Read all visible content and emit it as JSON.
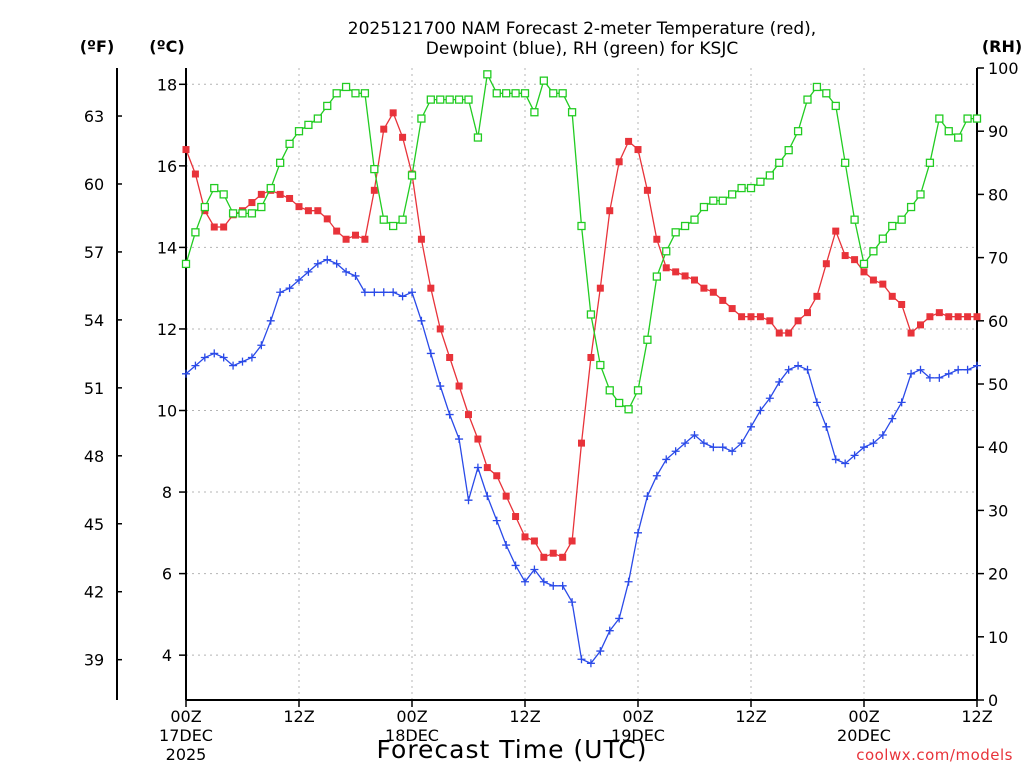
{
  "chart_data": {
    "type": "line",
    "title_line1": "2025121700 NAM Forecast 2-meter Temperature (red),",
    "title_line2": "Dewpoint (blue), RH (green) for KSJC",
    "xlabel": "Forecast Time (UTC)",
    "credit": "coolwx.com/models",
    "units": {
      "fahrenheit": "(ºF)",
      "celsius": "(ºC)",
      "rh": "(RH)"
    },
    "x_hours_range": [
      0,
      84
    ],
    "x_step_hours": 1,
    "celsius_range": [
      2.9,
      18.4
    ],
    "rh_range": [
      0,
      100
    ],
    "grid": true,
    "x_ticks": [
      {
        "hour": 0,
        "time": "00Z",
        "date": "17DEC",
        "year": "2025"
      },
      {
        "hour": 12,
        "time": "12Z",
        "date": "",
        "year": ""
      },
      {
        "hour": 24,
        "time": "00Z",
        "date": "18DEC",
        "year": ""
      },
      {
        "hour": 36,
        "time": "12Z",
        "date": "",
        "year": ""
      },
      {
        "hour": 48,
        "time": "00Z",
        "date": "19DEC",
        "year": ""
      },
      {
        "hour": 60,
        "time": "12Z",
        "date": "",
        "year": ""
      },
      {
        "hour": 72,
        "time": "00Z",
        "date": "20DEC",
        "year": ""
      },
      {
        "hour": 84,
        "time": "12Z",
        "date": "",
        "year": ""
      }
    ],
    "celsius_ticks": [
      4,
      6,
      8,
      10,
      12,
      14,
      16,
      18
    ],
    "fahrenheit_ticks": [
      39,
      42,
      45,
      48,
      51,
      54,
      57,
      60,
      63
    ],
    "rh_ticks": [
      0,
      10,
      20,
      30,
      40,
      50,
      60,
      70,
      80,
      90,
      100
    ],
    "series": [
      {
        "name": "Temperature (°C)",
        "color": "#e8333a",
        "marker": "filled-square",
        "axis": "celsius",
        "values": [
          16.4,
          15.8,
          14.9,
          14.5,
          14.5,
          14.8,
          14.9,
          15.1,
          15.3,
          15.4,
          15.3,
          15.2,
          15.0,
          14.9,
          14.9,
          14.7,
          14.4,
          14.2,
          14.3,
          14.2,
          15.4,
          16.9,
          17.3,
          16.7,
          15.8,
          14.2,
          13.0,
          12.0,
          11.3,
          10.6,
          9.9,
          9.3,
          8.6,
          8.4,
          7.9,
          7.4,
          6.9,
          6.8,
          6.4,
          6.5,
          6.4,
          6.8,
          9.2,
          11.3,
          13.0,
          14.9,
          16.1,
          16.6,
          16.4,
          15.4,
          14.2,
          13.5,
          13.4,
          13.3,
          13.2,
          13.0,
          12.9,
          12.7,
          12.5,
          12.3,
          12.3,
          12.3,
          12.2,
          11.9,
          11.9,
          12.2,
          12.4,
          12.8,
          13.6,
          14.4,
          13.8,
          13.7,
          13.4,
          13.2,
          13.1,
          12.8,
          12.6,
          11.9,
          12.1,
          12.3,
          12.4,
          12.3,
          12.3,
          12.3,
          12.3
        ]
      },
      {
        "name": "Dewpoint (°C)",
        "color": "#2a4ae8",
        "marker": "plus",
        "axis": "celsius",
        "values": [
          10.9,
          11.1,
          11.3,
          11.4,
          11.3,
          11.1,
          11.2,
          11.3,
          11.6,
          12.2,
          12.9,
          13.0,
          13.2,
          13.4,
          13.6,
          13.7,
          13.6,
          13.4,
          13.3,
          12.9,
          12.9,
          12.9,
          12.9,
          12.8,
          12.9,
          12.2,
          11.4,
          10.6,
          9.9,
          9.3,
          7.8,
          8.6,
          7.9,
          7.3,
          6.7,
          6.2,
          5.8,
          6.1,
          5.8,
          5.7,
          5.7,
          5.3,
          3.9,
          3.8,
          4.1,
          4.6,
          4.9,
          5.8,
          7.0,
          7.9,
          8.4,
          8.8,
          9.0,
          9.2,
          9.4,
          9.2,
          9.1,
          9.1,
          9.0,
          9.2,
          9.6,
          10.0,
          10.3,
          10.7,
          11.0,
          11.1,
          11.0,
          10.2,
          9.6,
          8.8,
          8.7,
          8.9,
          9.1,
          9.2,
          9.4,
          9.8,
          10.2,
          10.9,
          11.0,
          10.8,
          10.8,
          10.9,
          11.0,
          11.0,
          11.1
        ]
      },
      {
        "name": "RH (%)",
        "color": "#22cc22",
        "marker": "open-square",
        "axis": "rh",
        "values": [
          69,
          74,
          78,
          81,
          80,
          77,
          77,
          77,
          78,
          81,
          85,
          88,
          90,
          91,
          92,
          94,
          96,
          97,
          96,
          96,
          84,
          76,
          75,
          76,
          83,
          92,
          95,
          95,
          95,
          95,
          95,
          89,
          99,
          96,
          96,
          96,
          96,
          93,
          98,
          96,
          96,
          93,
          75,
          61,
          53,
          49,
          47,
          46,
          49,
          57,
          67,
          71,
          74,
          75,
          76,
          78,
          79,
          79,
          80,
          81,
          81,
          82,
          83,
          85,
          87,
          90,
          95,
          97,
          96,
          94,
          85,
          76,
          69,
          71,
          73,
          75,
          76,
          78,
          80,
          85,
          92,
          90,
          89,
          92,
          92
        ]
      }
    ]
  }
}
